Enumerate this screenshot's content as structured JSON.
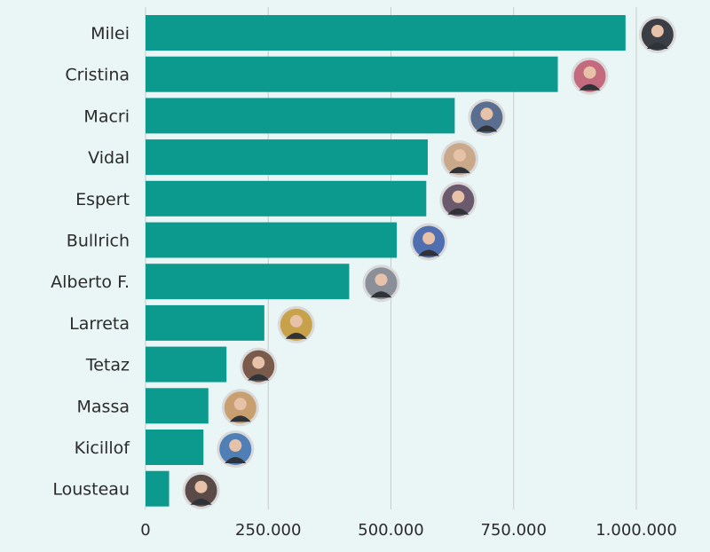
{
  "chart_data": {
    "type": "bar",
    "orientation": "horizontal",
    "categories": [
      "Milei",
      "Cristina",
      "Macri",
      "Vidal",
      "Espert",
      "Bullrich",
      "Alberto F.",
      "Larreta",
      "Tetaz",
      "Massa",
      "Kicillof",
      "Lousteau"
    ],
    "values": [
      978000,
      840000,
      630000,
      575000,
      572000,
      512000,
      415000,
      242000,
      165000,
      128000,
      118000,
      48000
    ],
    "xlim": [
      0,
      1150000
    ],
    "x_ticks": [
      0,
      250000,
      500000,
      750000,
      1000000
    ],
    "x_tick_labels": [
      "0",
      "250.000",
      "500.000",
      "750.000",
      "1.000.000"
    ],
    "grid": "vertical",
    "title": "",
    "xlabel": "",
    "ylabel": "",
    "bar_color": "#0d9a8e",
    "avatar_colors": [
      "#3b3f45",
      "#c46a7e",
      "#5a6f8f",
      "#c9a98a",
      "#6b5a6e",
      "#4f6fb0",
      "#8a8f98",
      "#c7a24a",
      "#7a5a4a",
      "#c8a070",
      "#4f7fb5",
      "#5a4a48"
    ]
  }
}
